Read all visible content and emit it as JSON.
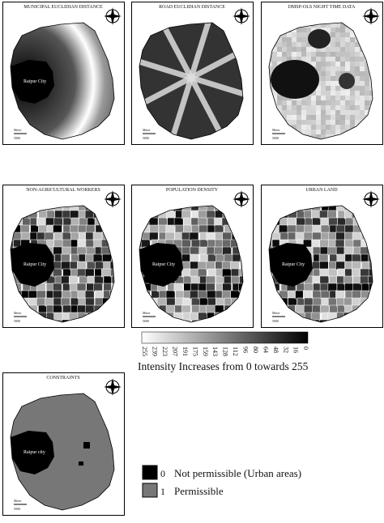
{
  "panels": [
    {
      "title": "MUNICIPAL EUCLIDIAN DISTANCE",
      "city": "Raipur City",
      "scale_unit": "Meter",
      "scale_value": "5000"
    },
    {
      "title": "ROAD EUCLIDIAN DISTANCE",
      "scale_unit": "Meter",
      "scale_value": "5000"
    },
    {
      "title": "DMSP-OLS NIGHT TIME DATA",
      "scale_unit": "Meter",
      "scale_value": "5000"
    },
    {
      "title": "NON-AGRICULTURAL WORKERS",
      "city": "Raipur City",
      "scale_unit": "Meter",
      "scale_value": "5000"
    },
    {
      "title": "POPULATION DENSITY",
      "city": "Raipur City",
      "scale_unit": "Meter",
      "scale_value": "5000"
    },
    {
      "title": "URBAN LAND",
      "city": "Raipur City",
      "scale_unit": "Meter",
      "scale_value": "5000"
    },
    {
      "title": "CONSTRAINTS",
      "city": "Raipur city",
      "scale_unit": "Meter",
      "scale_value": "5000"
    }
  ],
  "colorbar": {
    "ticks": [
      "255",
      "239",
      "223",
      "207",
      "191",
      "175",
      "159",
      "143",
      "128",
      "112",
      "96",
      "80",
      "64",
      "48",
      "32",
      "16",
      "0"
    ],
    "caption": "Intensity Increases from 0 towards 255"
  },
  "legend": [
    {
      "code": "0",
      "label": "Not permissible (Urban areas)"
    },
    {
      "code": "1",
      "label": "Permissible"
    }
  ]
}
